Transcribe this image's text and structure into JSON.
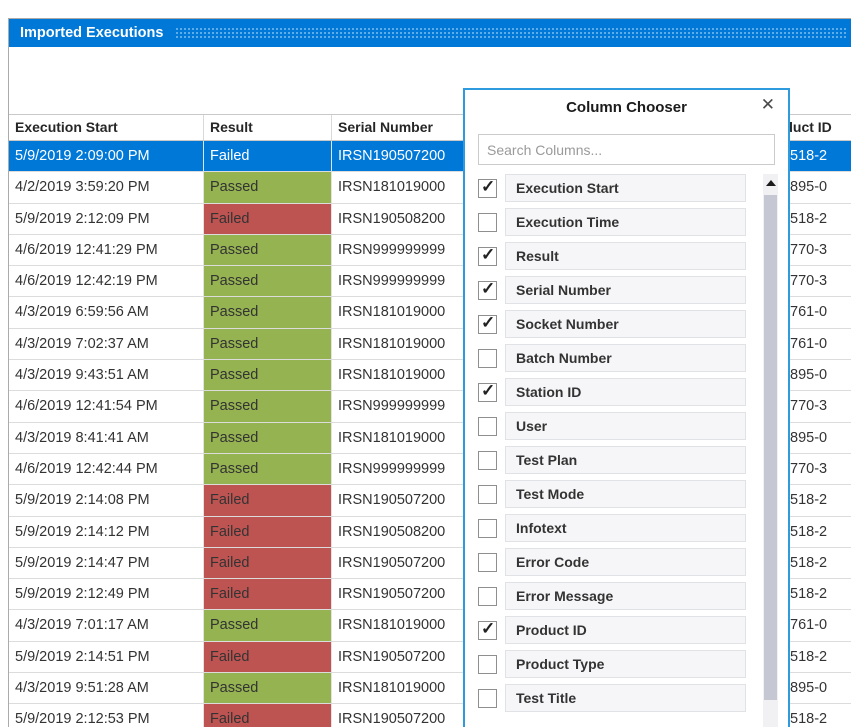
{
  "colors": {
    "accent": "#0078D7",
    "green": "#96B351",
    "red": "#BE5452",
    "popup_border": "#2E9BDF"
  },
  "panel": {
    "title": "Imported Executions"
  },
  "icons": {
    "close": "✕"
  },
  "table": {
    "columns": [
      {
        "label": "Execution Start"
      },
      {
        "label": "Result"
      },
      {
        "label": "Serial Number"
      },
      {
        "label": "Product ID"
      }
    ],
    "rows": [
      {
        "start": "5/9/2019 2:09:00 PM",
        "result": "Failed",
        "serial": "IRSN190507200",
        "product": "518-2",
        "selected": true
      },
      {
        "start": "4/2/2019 3:59:20 PM",
        "result": "Passed",
        "serial": "IRSN181019000",
        "product": "895-0"
      },
      {
        "start": "5/9/2019 2:12:09 PM",
        "result": "Failed",
        "serial": "IRSN190508200",
        "product": "518-2"
      },
      {
        "start": "4/6/2019 12:41:29 PM",
        "result": "Passed",
        "serial": "IRSN999999999",
        "product": "770-3"
      },
      {
        "start": "4/6/2019 12:42:19 PM",
        "result": "Passed",
        "serial": "IRSN999999999",
        "product": "770-3"
      },
      {
        "start": "4/3/2019 6:59:56 AM",
        "result": "Passed",
        "serial": "IRSN181019000",
        "product": "761-0"
      },
      {
        "start": "4/3/2019 7:02:37 AM",
        "result": "Passed",
        "serial": "IRSN181019000",
        "product": "761-0"
      },
      {
        "start": "4/3/2019 9:43:51 AM",
        "result": "Passed",
        "serial": "IRSN181019000",
        "product": "895-0"
      },
      {
        "start": "4/6/2019 12:41:54 PM",
        "result": "Passed",
        "serial": "IRSN999999999",
        "product": "770-3"
      },
      {
        "start": "4/3/2019 8:41:41 AM",
        "result": "Passed",
        "serial": "IRSN181019000",
        "product": "895-0"
      },
      {
        "start": "4/6/2019 12:42:44 PM",
        "result": "Passed",
        "serial": "IRSN999999999",
        "product": "770-3"
      },
      {
        "start": "5/9/2019 2:14:08 PM",
        "result": "Failed",
        "serial": "IRSN190507200",
        "product": "518-2"
      },
      {
        "start": "5/9/2019 2:14:12 PM",
        "result": "Failed",
        "serial": "IRSN190508200",
        "product": "518-2"
      },
      {
        "start": "5/9/2019 2:14:47 PM",
        "result": "Failed",
        "serial": "IRSN190507200",
        "product": "518-2"
      },
      {
        "start": "5/9/2019 2:12:49 PM",
        "result": "Failed",
        "serial": "IRSN190507200",
        "product": "518-2"
      },
      {
        "start": "4/3/2019 7:01:17 AM",
        "result": "Passed",
        "serial": "IRSN181019000",
        "product": "761-0"
      },
      {
        "start": "5/9/2019 2:14:51 PM",
        "result": "Failed",
        "serial": "IRSN190507200",
        "product": "518-2"
      },
      {
        "start": "4/3/2019 9:51:28 AM",
        "result": "Passed",
        "serial": "IRSN181019000",
        "product": "895-0"
      },
      {
        "start": "5/9/2019 2:12:53 PM",
        "result": "Failed",
        "serial": "IRSN190507200",
        "product": "518-2"
      }
    ]
  },
  "column_chooser": {
    "title": "Column Chooser",
    "search_placeholder": "Search Columns...",
    "items": [
      {
        "label": "Execution Start",
        "checked": true
      },
      {
        "label": "Execution Time",
        "checked": false
      },
      {
        "label": "Result",
        "checked": true
      },
      {
        "label": "Serial Number",
        "checked": true
      },
      {
        "label": "Socket Number",
        "checked": true
      },
      {
        "label": "Batch Number",
        "checked": false
      },
      {
        "label": "Station ID",
        "checked": true
      },
      {
        "label": "User",
        "checked": false
      },
      {
        "label": "Test Plan",
        "checked": false
      },
      {
        "label": "Test Mode",
        "checked": false
      },
      {
        "label": "Infotext",
        "checked": false
      },
      {
        "label": "Error Code",
        "checked": false
      },
      {
        "label": "Error Message",
        "checked": false
      },
      {
        "label": "Product ID",
        "checked": true
      },
      {
        "label": "Product Type",
        "checked": false
      },
      {
        "label": "Test Title",
        "checked": false
      }
    ]
  }
}
